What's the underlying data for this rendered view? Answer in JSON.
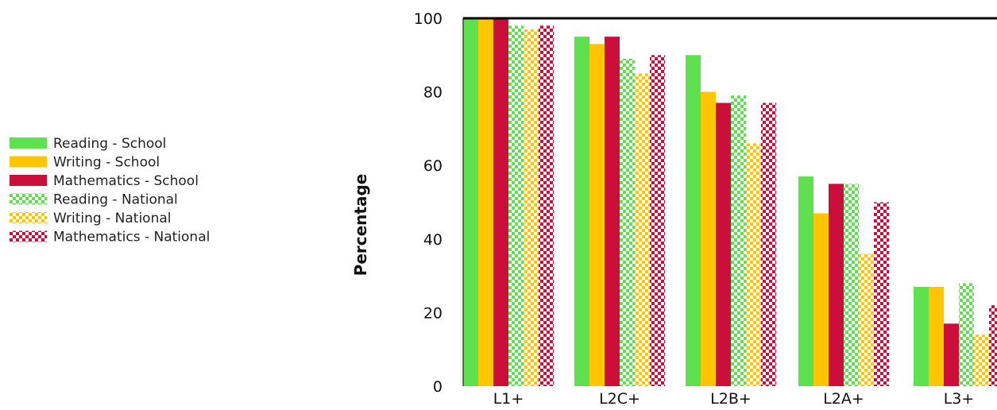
{
  "chart_data": {
    "type": "bar",
    "ylabel": "Percentage",
    "ylim": [
      0,
      100
    ],
    "yticks": [
      0,
      20,
      40,
      60,
      80,
      100
    ],
    "grid": false,
    "legend_position": "left",
    "categories": [
      "L1+",
      "L2C+",
      "L2B+",
      "L2A+",
      "L3+"
    ],
    "series": [
      {
        "name": "Reading - School",
        "color": "#5ee04f",
        "pattern": "solid",
        "values": [
          100,
          95,
          90,
          57,
          27
        ]
      },
      {
        "name": "Writing - School",
        "color": "#ffc600",
        "pattern": "solid",
        "values": [
          100,
          93,
          80,
          47,
          27
        ]
      },
      {
        "name": "Mathematics - School",
        "color": "#cc0e3a",
        "pattern": "solid",
        "values": [
          100,
          95,
          77,
          55,
          17
        ]
      },
      {
        "name": "Reading - National",
        "color": "#5ee04f",
        "pattern": "checker",
        "values": [
          98,
          89,
          79,
          55,
          28
        ]
      },
      {
        "name": "Writing - National",
        "color": "#ffc600",
        "pattern": "checker",
        "values": [
          97,
          85,
          66,
          36,
          14
        ]
      },
      {
        "name": "Mathematics - National",
        "color": "#cc0e3a",
        "pattern": "checker",
        "values": [
          98,
          90,
          77,
          50,
          22
        ]
      }
    ]
  }
}
